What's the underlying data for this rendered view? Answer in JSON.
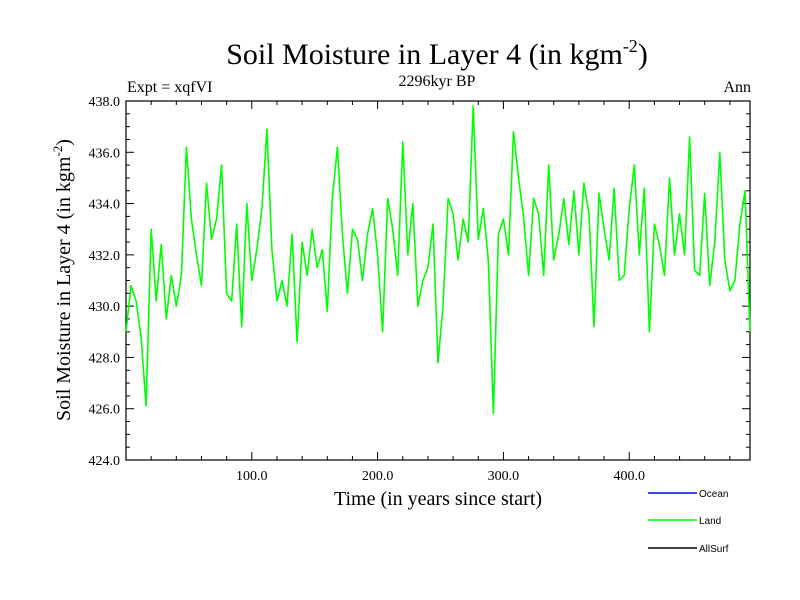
{
  "chart_data": {
    "type": "line",
    "title_main": "Soil Moisture in Layer 4 (in kgm",
    "title_sup": "-2",
    "title_close": ")",
    "subtitle": "2296kyr BP",
    "left_label": "Expt = xqfVI",
    "right_label": "Ann",
    "xlabel": "Time (in years since start)",
    "ylabel_main": "Soil Moisture in Layer 4 (in kgm",
    "ylabel_sup": "-2",
    "ylabel_close": ")",
    "xlim": [
      0,
      496
    ],
    "ylim": [
      424.0,
      438.0
    ],
    "x_ticks": [
      100,
      200,
      300,
      400
    ],
    "x_tick_labels": [
      "100.0",
      "200.0",
      "300.0",
      "400.0"
    ],
    "y_ticks": [
      424,
      426,
      428,
      430,
      432,
      434,
      436,
      438
    ],
    "y_tick_labels": [
      "424.0",
      "426.0",
      "428.0",
      "430.0",
      "432.0",
      "434.0",
      "436.0",
      "438.0"
    ],
    "legend": [
      {
        "name": "Ocean",
        "color": "#0000ff"
      },
      {
        "name": "Land",
        "color": "#00ff00"
      },
      {
        "name": "AllSurf",
        "color": "#000000"
      }
    ],
    "series": [
      {
        "name": "Land",
        "color": "#00ff00",
        "x": [
          0,
          4,
          8,
          12,
          16,
          20,
          24,
          28,
          32,
          36,
          40,
          44,
          48,
          52,
          56,
          60,
          64,
          68,
          72,
          76,
          80,
          84,
          88,
          92,
          96,
          100,
          104,
          108,
          112,
          116,
          120,
          124,
          128,
          132,
          136,
          140,
          144,
          148,
          152,
          156,
          160,
          164,
          168,
          172,
          176,
          180,
          184,
          188,
          192,
          196,
          200,
          204,
          208,
          212,
          216,
          220,
          224,
          228,
          232,
          236,
          240,
          244,
          248,
          252,
          256,
          260,
          264,
          268,
          272,
          276,
          280,
          284,
          288,
          292,
          296,
          300,
          304,
          308,
          312,
          316,
          320,
          324,
          328,
          332,
          336,
          340,
          344,
          348,
          352,
          356,
          360,
          364,
          368,
          372,
          376,
          380,
          384,
          388,
          392,
          396,
          400,
          404,
          408,
          412,
          416,
          420,
          424,
          428,
          432,
          436,
          440,
          444,
          448,
          452,
          456,
          460,
          464,
          468,
          472,
          476,
          480,
          484,
          488,
          492,
          496
        ],
        "values": [
          429.0,
          430.8,
          430.2,
          428.8,
          426.1,
          433.0,
          430.2,
          432.4,
          429.5,
          431.2,
          430.0,
          431.2,
          436.2,
          433.4,
          432.0,
          430.8,
          434.8,
          432.6,
          433.4,
          435.5,
          430.5,
          430.2,
          433.2,
          429.2,
          434.0,
          431.0,
          432.2,
          433.8,
          436.9,
          432.2,
          430.2,
          431.0,
          430.0,
          432.8,
          428.6,
          432.5,
          431.2,
          433.0,
          431.5,
          432.2,
          429.8,
          434.2,
          436.2,
          432.8,
          430.5,
          433.0,
          432.6,
          431.0,
          432.8,
          433.8,
          432.0,
          429.0,
          434.2,
          433.0,
          431.2,
          436.4,
          432.0,
          434.0,
          430.0,
          431.0,
          431.5,
          433.2,
          427.8,
          430.0,
          434.2,
          433.6,
          431.8,
          433.4,
          432.5,
          437.8,
          432.6,
          433.8,
          431.8,
          425.8,
          432.8,
          433.4,
          432.0,
          436.8,
          435.0,
          433.5,
          431.2,
          434.2,
          433.6,
          431.2,
          435.5,
          431.8,
          432.8,
          434.2,
          432.4,
          434.5,
          432.0,
          434.8,
          433.6,
          429.2,
          434.4,
          433.0,
          431.8,
          434.6,
          431.0,
          431.2,
          433.8,
          435.5,
          432.0,
          434.6,
          429.0,
          433.2,
          432.4,
          431.2,
          435.0,
          432.0,
          433.6,
          432.0,
          436.6,
          431.4,
          431.2,
          434.4,
          430.8,
          432.5,
          436.0,
          431.8,
          430.6,
          431.0,
          433.2,
          434.5,
          429.0
        ]
      },
      {
        "name": "Ocean",
        "color": "#0000ff",
        "x": [],
        "values": []
      },
      {
        "name": "AllSurf",
        "color": "#000000",
        "x": [],
        "values": []
      }
    ]
  }
}
